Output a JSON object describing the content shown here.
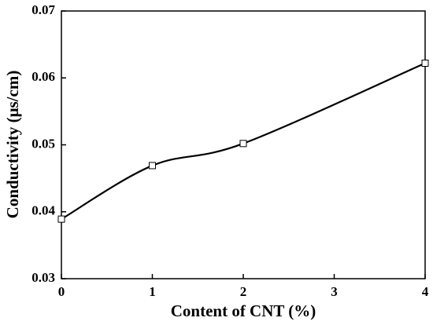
{
  "chart_data": {
    "type": "line",
    "x_label": "Content of CNT (%)",
    "y_label": "Conductivity (μs/cm)",
    "x": [
      0,
      1,
      2,
      4
    ],
    "values": [
      0.0389,
      0.0469,
      0.0502,
      0.0622
    ],
    "color": "#000000",
    "marker": "square",
    "xlim": [
      0,
      4
    ],
    "xticks": [
      0,
      1,
      2,
      3,
      4
    ],
    "ylim": [
      0.03,
      0.07
    ],
    "yticks": [
      0.03,
      0.04,
      0.05,
      0.06,
      0.07
    ]
  }
}
